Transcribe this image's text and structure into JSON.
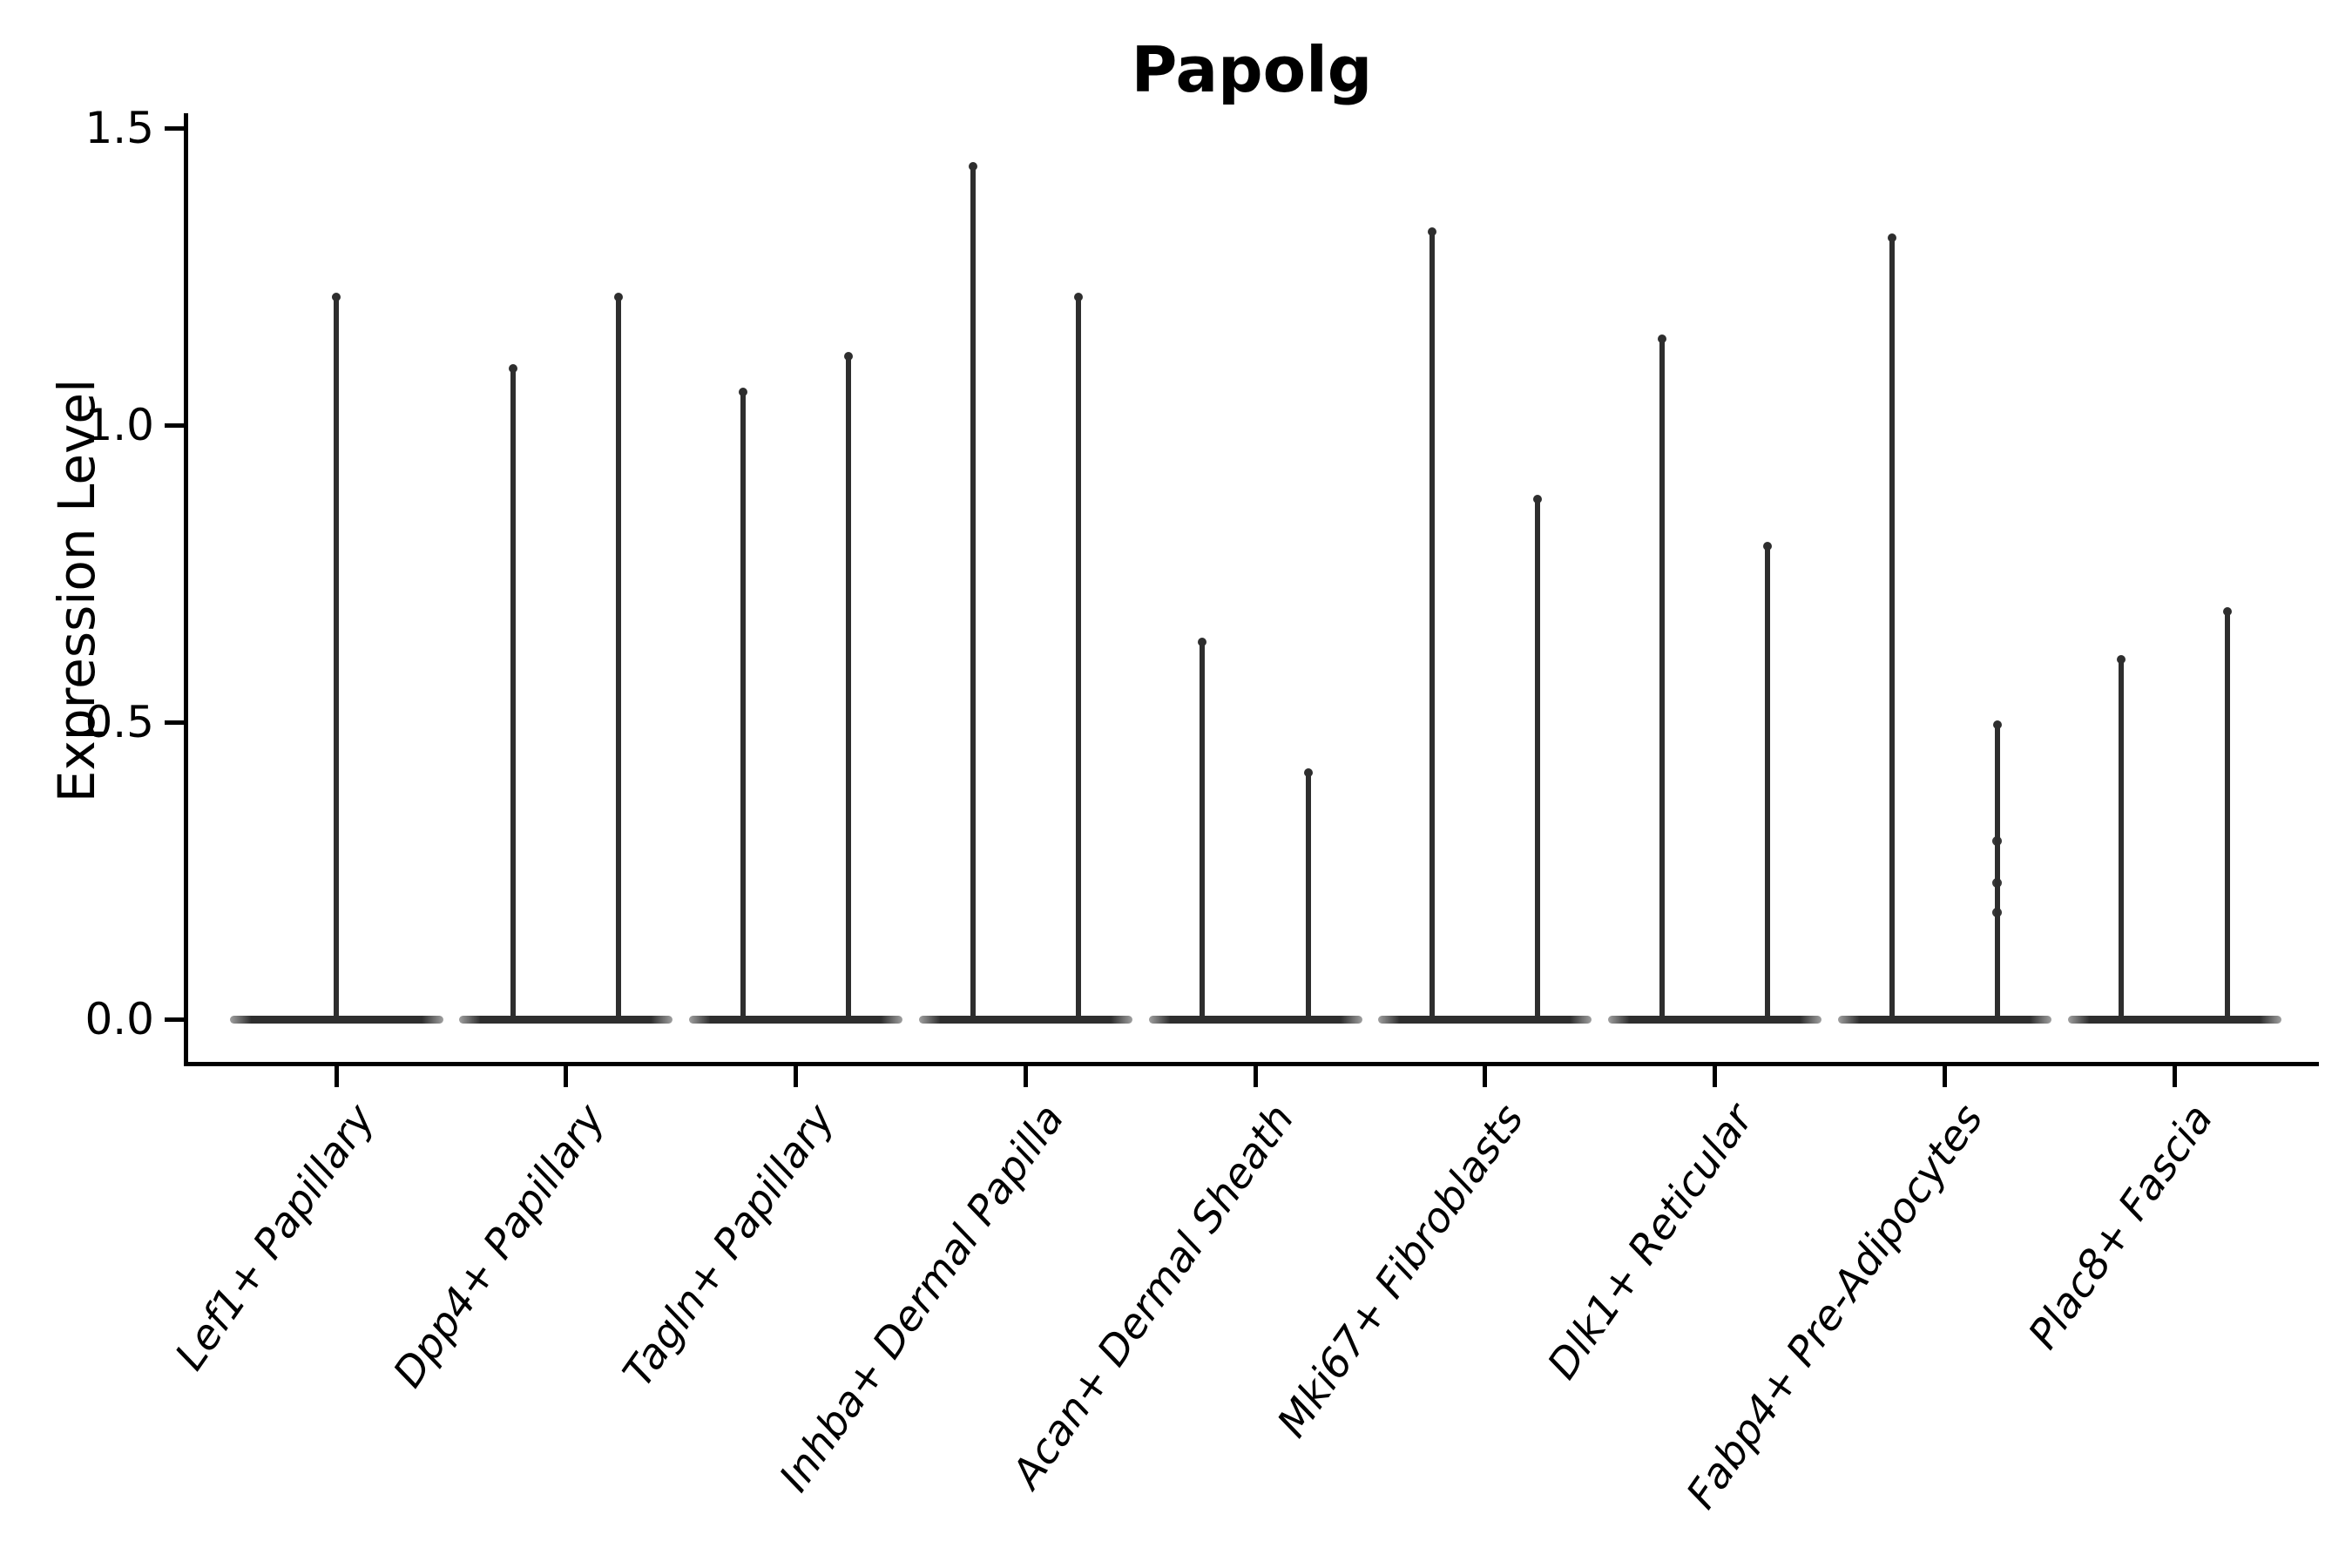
{
  "title": "Papolg",
  "chart_data": {
    "type": "violin",
    "title": "Papolg",
    "xlabel": "",
    "ylabel": "Expression Level",
    "ylim": [
      -0.075,
      1.52
    ],
    "yticks": [
      {
        "value": 0.0,
        "label": "0.0"
      },
      {
        "value": 0.5,
        "label": "0.5"
      },
      {
        "value": 1.0,
        "label": "1.0"
      },
      {
        "value": 1.5,
        "label": "1.5"
      }
    ],
    "grid": false,
    "legend": "none",
    "violin_width": 0.93,
    "categories": [
      "Lef1+ Papillary",
      "Dpp4+ Papillary",
      "Tagln+ Papillary",
      "Inhba+ Dermal Papilla",
      "Acan+ Dermal Sheath",
      "Mki67+ Fibroblasts",
      "Dlk1+ Reticular",
      "Fabp4+ Pre-Adipocytes",
      "Plac8+ Fascia"
    ],
    "violins": [
      {
        "category": "Lef1+ Papillary",
        "spikes": [
          {
            "offset": 0.0,
            "max": 1.22
          }
        ]
      },
      {
        "category": "Dpp4+ Papillary",
        "spikes": [
          {
            "offset": -0.23,
            "max": 1.1
          },
          {
            "offset": 0.23,
            "max": 1.22
          }
        ]
      },
      {
        "category": "Tagln+ Papillary",
        "spikes": [
          {
            "offset": -0.23,
            "max": 1.06
          },
          {
            "offset": 0.23,
            "max": 1.12
          }
        ]
      },
      {
        "category": "Inhba+ Dermal Papilla",
        "spikes": [
          {
            "offset": -0.23,
            "max": 1.44
          },
          {
            "offset": 0.23,
            "max": 1.22
          }
        ]
      },
      {
        "category": "Acan+ Dermal Sheath",
        "spikes": [
          {
            "offset": -0.23,
            "max": 0.64
          },
          {
            "offset": 0.23,
            "max": 0.42
          }
        ]
      },
      {
        "category": "Mki67+ Fibroblasts",
        "spikes": [
          {
            "offset": -0.23,
            "max": 1.33
          },
          {
            "offset": 0.23,
            "max": 0.88
          }
        ]
      },
      {
        "category": "Dlk1+ Reticular",
        "spikes": [
          {
            "offset": -0.23,
            "max": 1.15
          },
          {
            "offset": 0.23,
            "max": 0.8
          }
        ]
      },
      {
        "category": "Fabp4+ Pre-Adipocytes",
        "spikes": [
          {
            "offset": -0.23,
            "max": 1.32
          },
          {
            "offset": 0.23,
            "max": 0.5,
            "points": [
              0.3,
              0.23,
              0.18
            ]
          }
        ]
      },
      {
        "category": "Plac8+ Fascia",
        "spikes": [
          {
            "offset": -0.23,
            "max": 0.61
          },
          {
            "offset": 0.23,
            "max": 0.69
          }
        ]
      }
    ],
    "colors": {
      "violin": "#2e2e2e",
      "axis": "#000000",
      "background": "#ffffff"
    }
  }
}
